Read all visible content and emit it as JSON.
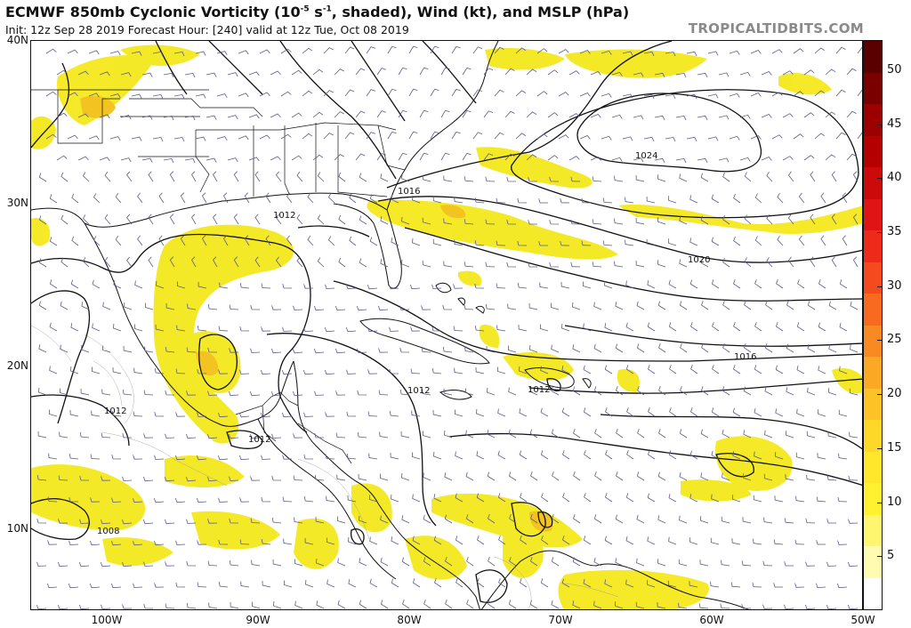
{
  "header": {
    "title_prefix": "ECMWF 850mb Cyclonic Vorticity (10",
    "title_exp": "-5",
    "title_mid": " s",
    "title_exp2": "-1",
    "title_suffix": ", shaded), Wind (kt), and MSLP (hPa)",
    "subtitle": "Init: 12z Sep 28 2019   Forecast Hour: [240]   valid at 12z Tue, Oct 08 2019",
    "brand": "TROPICALTIDBITS.COM"
  },
  "axes": {
    "lat_labels": [
      "40N",
      "30N",
      "20N",
      "10N"
    ],
    "lon_labels": [
      "100W",
      "90W",
      "80W",
      "70W",
      "60W",
      "50W"
    ]
  },
  "colorbar": {
    "ticks": [
      "50",
      "45",
      "40",
      "35",
      "30",
      "25",
      "20",
      "15",
      "10",
      "5"
    ],
    "colors": [
      "#5a0000",
      "#7a0000",
      "#9c0000",
      "#b50000",
      "#cc0a0a",
      "#e01414",
      "#ee2a1a",
      "#f44a1e",
      "#f76a20",
      "#f98a22",
      "#fba824",
      "#fdc226",
      "#fed828",
      "#ffe82c",
      "#fff030",
      "#fff670",
      "#fffbb0",
      "#ffffff"
    ]
  },
  "isobars": {
    "labels": [
      "1024",
      "1020",
      "1016",
      "1016",
      "1012",
      "1012",
      "1012",
      "1012",
      "1012",
      "1008"
    ]
  },
  "colors": {
    "vorticity_fill": "#f4e81c",
    "vorticity_strong": "#f3c421",
    "isobar": "#111111",
    "coast": "#111111",
    "barb": "#5b5b8c"
  }
}
